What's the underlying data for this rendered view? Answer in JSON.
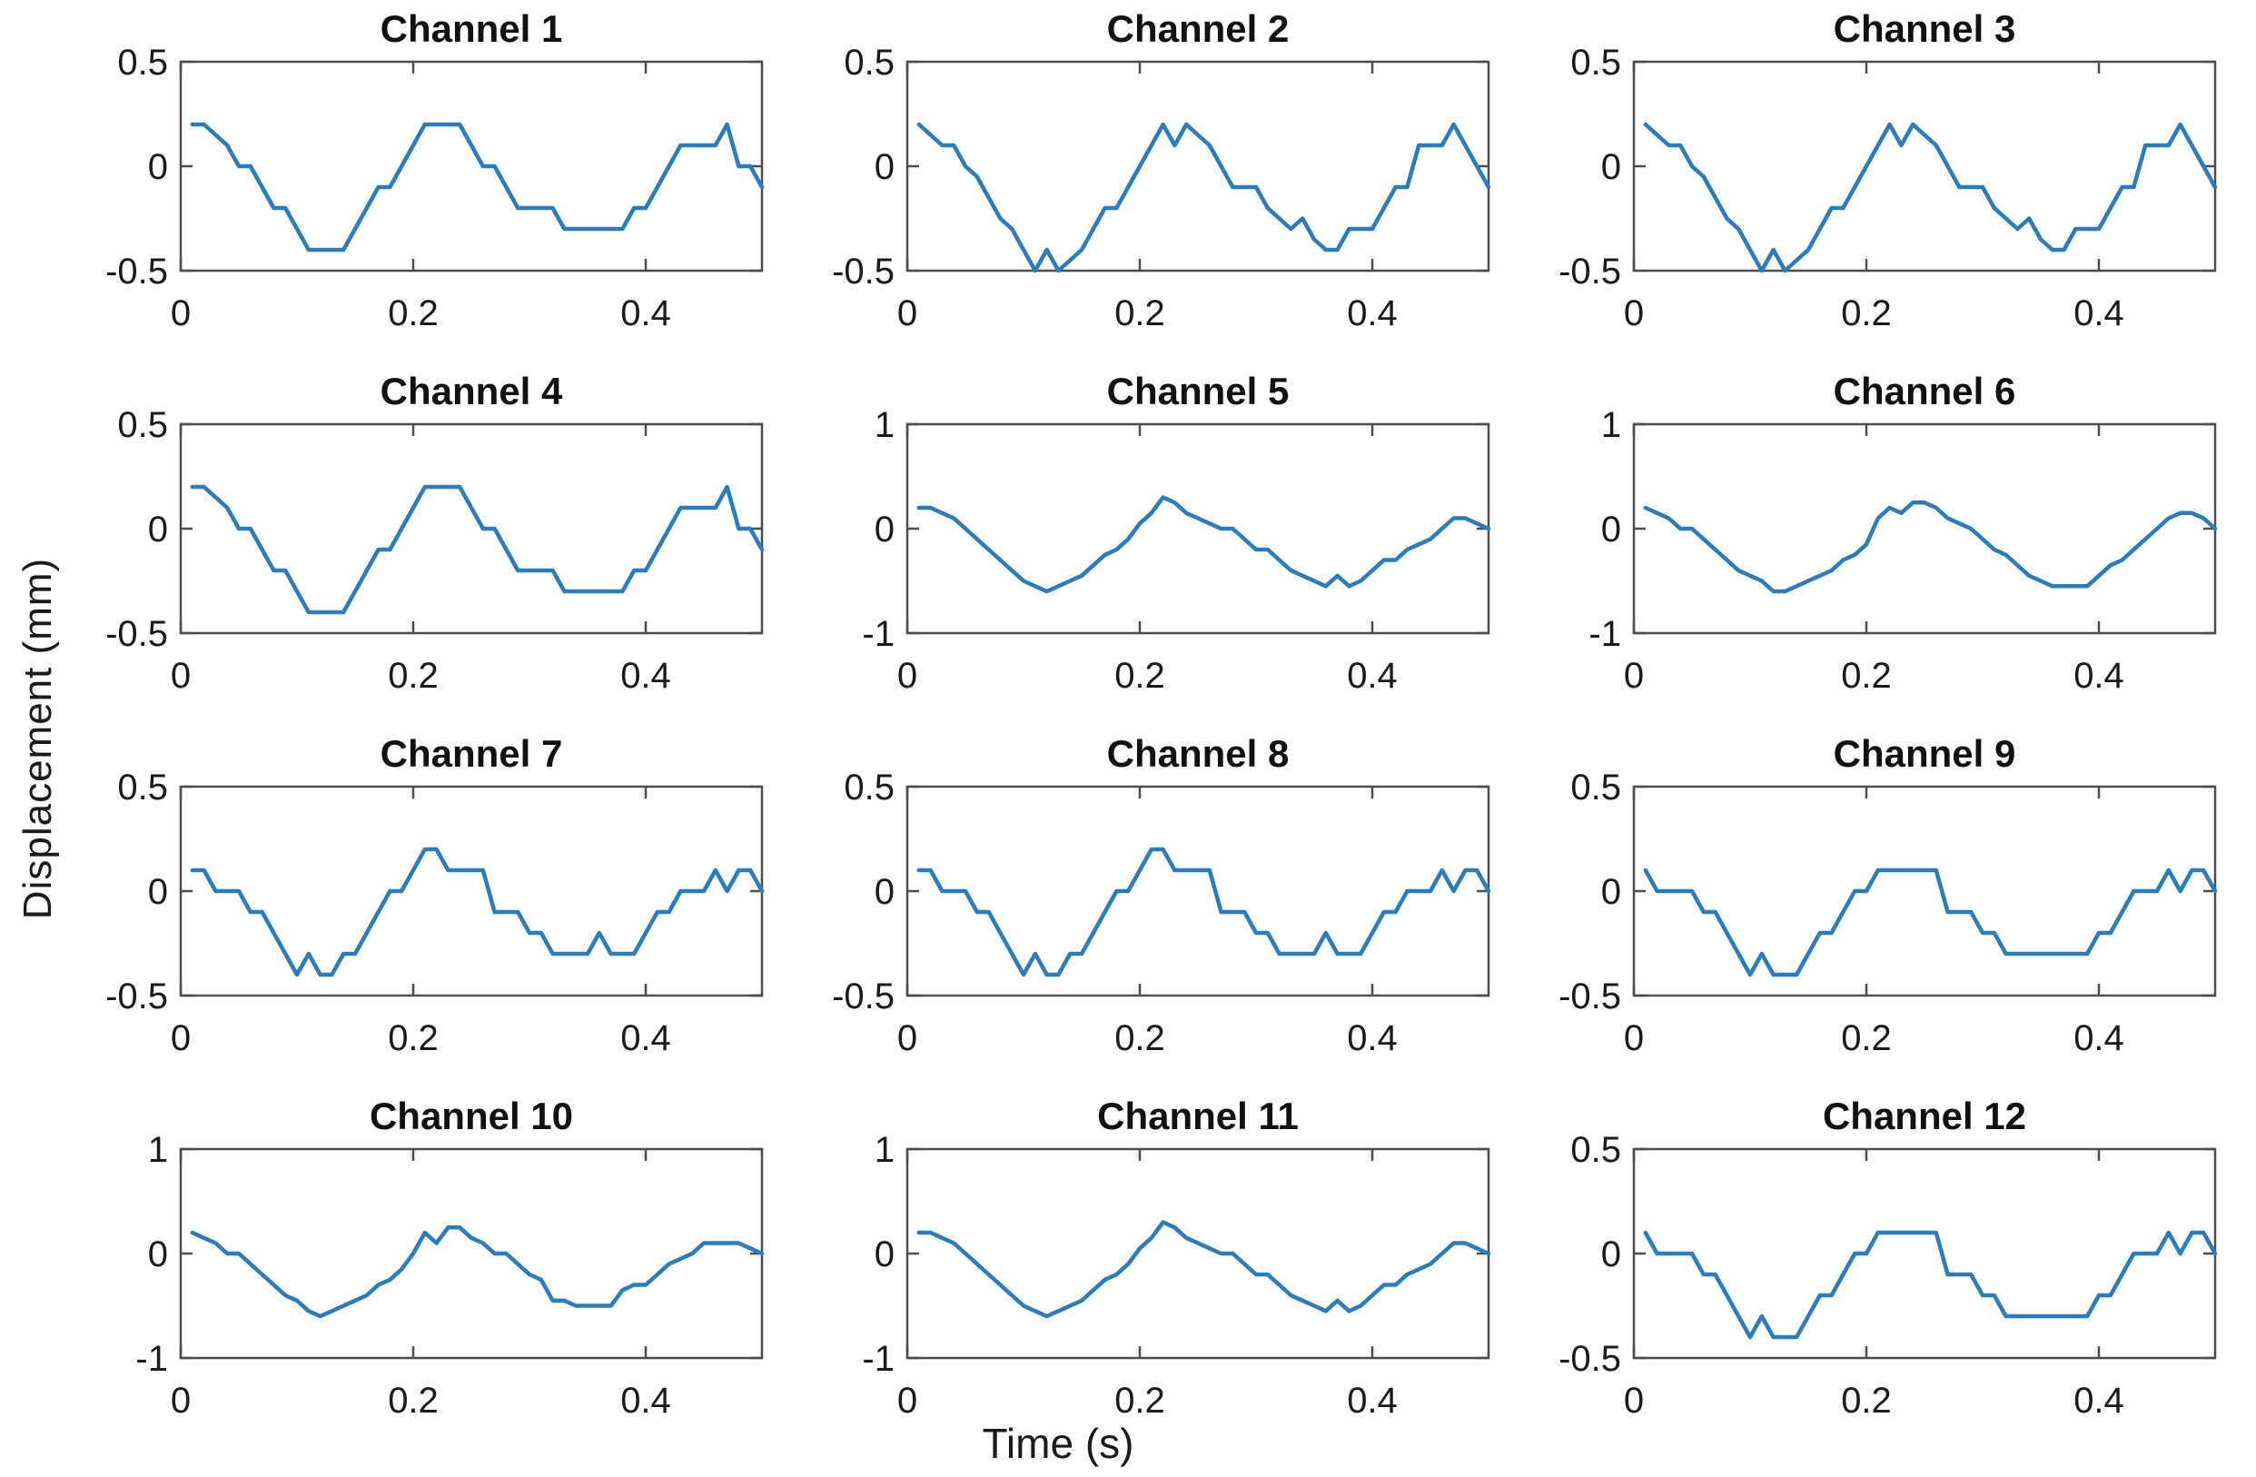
{
  "figure": {
    "ylabel": "Displacement (mm)",
    "xlabel": "Time (s)",
    "background": "#ffffff",
    "line_color": "#2b7cba",
    "axis_color": "#4d4d4d",
    "text_color": "#1a1a1a"
  },
  "time": [
    0.01,
    0.02,
    0.03,
    0.04,
    0.05,
    0.06,
    0.07,
    0.08,
    0.09,
    0.1,
    0.11,
    0.12,
    0.13,
    0.14,
    0.15,
    0.16,
    0.17,
    0.18,
    0.19,
    0.2,
    0.21,
    0.22,
    0.23,
    0.24,
    0.25,
    0.26,
    0.27,
    0.28,
    0.29,
    0.3,
    0.31,
    0.32,
    0.33,
    0.34,
    0.35,
    0.36,
    0.37,
    0.38,
    0.39,
    0.4,
    0.41,
    0.42,
    0.43,
    0.44,
    0.45,
    0.46,
    0.47,
    0.48,
    0.49,
    0.5
  ],
  "chart_data": [
    {
      "type": "line",
      "title": "Channel 1",
      "xlim": [
        0,
        0.5
      ],
      "ylim": [
        -0.5,
        0.5
      ],
      "xticks": [
        0,
        0.2,
        0.4
      ],
      "yticks": [
        0.5,
        0,
        -0.5
      ],
      "values": [
        0.2,
        0.2,
        0.15,
        0.1,
        0.0,
        0.0,
        -0.1,
        -0.2,
        -0.2,
        -0.3,
        -0.4,
        -0.4,
        -0.4,
        -0.4,
        -0.3,
        -0.2,
        -0.1,
        -0.1,
        0.0,
        0.1,
        0.2,
        0.2,
        0.2,
        0.2,
        0.1,
        0.0,
        0.0,
        -0.1,
        -0.2,
        -0.2,
        -0.2,
        -0.2,
        -0.3,
        -0.3,
        -0.3,
        -0.3,
        -0.3,
        -0.3,
        -0.2,
        -0.2,
        -0.1,
        0.0,
        0.1,
        0.1,
        0.1,
        0.1,
        0.2,
        0.0,
        0.0,
        -0.1
      ]
    },
    {
      "type": "line",
      "title": "Channel 2",
      "xlim": [
        0,
        0.5
      ],
      "ylim": [
        -0.5,
        0.5
      ],
      "xticks": [
        0,
        0.2,
        0.4
      ],
      "yticks": [
        0.5,
        0,
        -0.5
      ],
      "values": [
        0.2,
        0.15,
        0.1,
        0.1,
        0.0,
        -0.05,
        -0.15,
        -0.25,
        -0.3,
        -0.4,
        -0.5,
        -0.4,
        -0.5,
        -0.45,
        -0.4,
        -0.3,
        -0.2,
        -0.2,
        -0.1,
        0.0,
        0.1,
        0.2,
        0.1,
        0.2,
        0.15,
        0.1,
        0.0,
        -0.1,
        -0.1,
        -0.1,
        -0.2,
        -0.25,
        -0.3,
        -0.25,
        -0.35,
        -0.4,
        -0.4,
        -0.3,
        -0.3,
        -0.3,
        -0.2,
        -0.1,
        -0.1,
        0.1,
        0.1,
        0.1,
        0.2,
        0.1,
        0.0,
        -0.1
      ]
    },
    {
      "type": "line",
      "title": "Channel 3",
      "xlim": [
        0,
        0.5
      ],
      "ylim": [
        -0.5,
        0.5
      ],
      "xticks": [
        0,
        0.2,
        0.4
      ],
      "yticks": [
        0.5,
        0,
        -0.5
      ],
      "values": [
        0.2,
        0.15,
        0.1,
        0.1,
        0.0,
        -0.05,
        -0.15,
        -0.25,
        -0.3,
        -0.4,
        -0.5,
        -0.4,
        -0.5,
        -0.45,
        -0.4,
        -0.3,
        -0.2,
        -0.2,
        -0.1,
        0.0,
        0.1,
        0.2,
        0.1,
        0.2,
        0.15,
        0.1,
        0.0,
        -0.1,
        -0.1,
        -0.1,
        -0.2,
        -0.25,
        -0.3,
        -0.25,
        -0.35,
        -0.4,
        -0.4,
        -0.3,
        -0.3,
        -0.3,
        -0.2,
        -0.1,
        -0.1,
        0.1,
        0.1,
        0.1,
        0.2,
        0.1,
        0.0,
        -0.1
      ]
    },
    {
      "type": "line",
      "title": "Channel 4",
      "xlim": [
        0,
        0.5
      ],
      "ylim": [
        -0.5,
        0.5
      ],
      "xticks": [
        0,
        0.2,
        0.4
      ],
      "yticks": [
        0.5,
        0,
        -0.5
      ],
      "values": [
        0.2,
        0.2,
        0.15,
        0.1,
        0.0,
        0.0,
        -0.1,
        -0.2,
        -0.2,
        -0.3,
        -0.4,
        -0.4,
        -0.4,
        -0.4,
        -0.3,
        -0.2,
        -0.1,
        -0.1,
        0.0,
        0.1,
        0.2,
        0.2,
        0.2,
        0.2,
        0.1,
        0.0,
        0.0,
        -0.1,
        -0.2,
        -0.2,
        -0.2,
        -0.2,
        -0.3,
        -0.3,
        -0.3,
        -0.3,
        -0.3,
        -0.3,
        -0.2,
        -0.2,
        -0.1,
        0.0,
        0.1,
        0.1,
        0.1,
        0.1,
        0.2,
        0.0,
        0.0,
        -0.1
      ]
    },
    {
      "type": "line",
      "title": "Channel 5",
      "xlim": [
        0,
        0.5
      ],
      "ylim": [
        -1,
        1
      ],
      "xticks": [
        0,
        0.2,
        0.4
      ],
      "yticks": [
        1,
        0,
        -1
      ],
      "values": [
        0.2,
        0.2,
        0.15,
        0.1,
        0.0,
        -0.1,
        -0.2,
        -0.3,
        -0.4,
        -0.5,
        -0.55,
        -0.6,
        -0.55,
        -0.5,
        -0.45,
        -0.35,
        -0.25,
        -0.2,
        -0.1,
        0.05,
        0.15,
        0.3,
        0.25,
        0.15,
        0.1,
        0.05,
        0.0,
        0.0,
        -0.1,
        -0.2,
        -0.2,
        -0.3,
        -0.4,
        -0.45,
        -0.5,
        -0.55,
        -0.45,
        -0.55,
        -0.5,
        -0.4,
        -0.3,
        -0.3,
        -0.2,
        -0.15,
        -0.1,
        0.0,
        0.1,
        0.1,
        0.05,
        0.0
      ]
    },
    {
      "type": "line",
      "title": "Channel 6",
      "xlim": [
        0,
        0.5
      ],
      "ylim": [
        -1,
        1
      ],
      "xticks": [
        0,
        0.2,
        0.4
      ],
      "yticks": [
        1,
        0,
        -1
      ],
      "values": [
        0.2,
        0.15,
        0.1,
        0.0,
        0.0,
        -0.1,
        -0.2,
        -0.3,
        -0.4,
        -0.45,
        -0.5,
        -0.6,
        -0.6,
        -0.55,
        -0.5,
        -0.45,
        -0.4,
        -0.3,
        -0.25,
        -0.15,
        0.1,
        0.2,
        0.15,
        0.25,
        0.25,
        0.2,
        0.1,
        0.05,
        0.0,
        -0.1,
        -0.2,
        -0.25,
        -0.35,
        -0.45,
        -0.5,
        -0.55,
        -0.55,
        -0.55,
        -0.55,
        -0.45,
        -0.35,
        -0.3,
        -0.2,
        -0.1,
        0.0,
        0.1,
        0.15,
        0.15,
        0.1,
        0.0
      ]
    },
    {
      "type": "line",
      "title": "Channel 7",
      "xlim": [
        0,
        0.5
      ],
      "ylim": [
        -0.5,
        0.5
      ],
      "xticks": [
        0,
        0.2,
        0.4
      ],
      "yticks": [
        0.5,
        0,
        -0.5
      ],
      "values": [
        0.1,
        0.1,
        0.0,
        0.0,
        0.0,
        -0.1,
        -0.1,
        -0.2,
        -0.3,
        -0.4,
        -0.3,
        -0.4,
        -0.4,
        -0.3,
        -0.3,
        -0.2,
        -0.1,
        0.0,
        0.0,
        0.1,
        0.2,
        0.2,
        0.1,
        0.1,
        0.1,
        0.1,
        -0.1,
        -0.1,
        -0.1,
        -0.2,
        -0.2,
        -0.3,
        -0.3,
        -0.3,
        -0.3,
        -0.2,
        -0.3,
        -0.3,
        -0.3,
        -0.2,
        -0.1,
        -0.1,
        0.0,
        0.0,
        0.0,
        0.1,
        0.0,
        0.1,
        0.1,
        0.0
      ]
    },
    {
      "type": "line",
      "title": "Channel 8",
      "xlim": [
        0,
        0.5
      ],
      "ylim": [
        -0.5,
        0.5
      ],
      "xticks": [
        0,
        0.2,
        0.4
      ],
      "yticks": [
        0.5,
        0,
        -0.5
      ],
      "values": [
        0.1,
        0.1,
        0.0,
        0.0,
        0.0,
        -0.1,
        -0.1,
        -0.2,
        -0.3,
        -0.4,
        -0.3,
        -0.4,
        -0.4,
        -0.3,
        -0.3,
        -0.2,
        -0.1,
        0.0,
        0.0,
        0.1,
        0.2,
        0.2,
        0.1,
        0.1,
        0.1,
        0.1,
        -0.1,
        -0.1,
        -0.1,
        -0.2,
        -0.2,
        -0.3,
        -0.3,
        -0.3,
        -0.3,
        -0.2,
        -0.3,
        -0.3,
        -0.3,
        -0.2,
        -0.1,
        -0.1,
        0.0,
        0.0,
        0.0,
        0.1,
        0.0,
        0.1,
        0.1,
        0.0
      ]
    },
    {
      "type": "line",
      "title": "Channel 9",
      "xlim": [
        0,
        0.5
      ],
      "ylim": [
        -0.5,
        0.5
      ],
      "xticks": [
        0,
        0.2,
        0.4
      ],
      "yticks": [
        0.5,
        0,
        -0.5
      ],
      "values": [
        0.1,
        0.0,
        0.0,
        0.0,
        0.0,
        -0.1,
        -0.1,
        -0.2,
        -0.3,
        -0.4,
        -0.3,
        -0.4,
        -0.4,
        -0.4,
        -0.3,
        -0.2,
        -0.2,
        -0.1,
        0.0,
        0.0,
        0.1,
        0.1,
        0.1,
        0.1,
        0.1,
        0.1,
        -0.1,
        -0.1,
        -0.1,
        -0.2,
        -0.2,
        -0.3,
        -0.3,
        -0.3,
        -0.3,
        -0.3,
        -0.3,
        -0.3,
        -0.3,
        -0.2,
        -0.2,
        -0.1,
        0.0,
        0.0,
        0.0,
        0.1,
        0.0,
        0.1,
        0.1,
        0.0
      ]
    },
    {
      "type": "line",
      "title": "Channel 10",
      "xlim": [
        0,
        0.5
      ],
      "ylim": [
        -1,
        1
      ],
      "xticks": [
        0,
        0.2,
        0.4
      ],
      "yticks": [
        1,
        0,
        -1
      ],
      "values": [
        0.2,
        0.15,
        0.1,
        0.0,
        0.0,
        -0.1,
        -0.2,
        -0.3,
        -0.4,
        -0.45,
        -0.55,
        -0.6,
        -0.55,
        -0.5,
        -0.45,
        -0.4,
        -0.3,
        -0.25,
        -0.15,
        0.0,
        0.2,
        0.1,
        0.25,
        0.25,
        0.15,
        0.1,
        0.0,
        0.0,
        -0.1,
        -0.2,
        -0.25,
        -0.45,
        -0.45,
        -0.5,
        -0.5,
        -0.5,
        -0.5,
        -0.35,
        -0.3,
        -0.3,
        -0.2,
        -0.1,
        -0.05,
        0.0,
        0.1,
        0.1,
        0.1,
        0.1,
        0.05,
        0.0
      ]
    },
    {
      "type": "line",
      "title": "Channel 11",
      "xlim": [
        0,
        0.5
      ],
      "ylim": [
        -1,
        1
      ],
      "xticks": [
        0,
        0.2,
        0.4
      ],
      "yticks": [
        1,
        0,
        -1
      ],
      "values": [
        0.2,
        0.2,
        0.15,
        0.1,
        0.0,
        -0.1,
        -0.2,
        -0.3,
        -0.4,
        -0.5,
        -0.55,
        -0.6,
        -0.55,
        -0.5,
        -0.45,
        -0.35,
        -0.25,
        -0.2,
        -0.1,
        0.05,
        0.15,
        0.3,
        0.25,
        0.15,
        0.1,
        0.05,
        0.0,
        0.0,
        -0.1,
        -0.2,
        -0.2,
        -0.3,
        -0.4,
        -0.45,
        -0.5,
        -0.55,
        -0.45,
        -0.55,
        -0.5,
        -0.4,
        -0.3,
        -0.3,
        -0.2,
        -0.15,
        -0.1,
        0.0,
        0.1,
        0.1,
        0.05,
        0.0
      ]
    },
    {
      "type": "line",
      "title": "Channel 12",
      "xlim": [
        0,
        0.5
      ],
      "ylim": [
        -0.5,
        0.5
      ],
      "xticks": [
        0,
        0.2,
        0.4
      ],
      "yticks": [
        0.5,
        0,
        -0.5
      ],
      "values": [
        0.1,
        0.0,
        0.0,
        0.0,
        0.0,
        -0.1,
        -0.1,
        -0.2,
        -0.3,
        -0.4,
        -0.3,
        -0.4,
        -0.4,
        -0.4,
        -0.3,
        -0.2,
        -0.2,
        -0.1,
        0.0,
        0.0,
        0.1,
        0.1,
        0.1,
        0.1,
        0.1,
        0.1,
        -0.1,
        -0.1,
        -0.1,
        -0.2,
        -0.2,
        -0.3,
        -0.3,
        -0.3,
        -0.3,
        -0.3,
        -0.3,
        -0.3,
        -0.3,
        -0.2,
        -0.2,
        -0.1,
        0.0,
        0.0,
        0.0,
        0.1,
        0.0,
        0.1,
        0.1,
        0.0
      ]
    }
  ]
}
